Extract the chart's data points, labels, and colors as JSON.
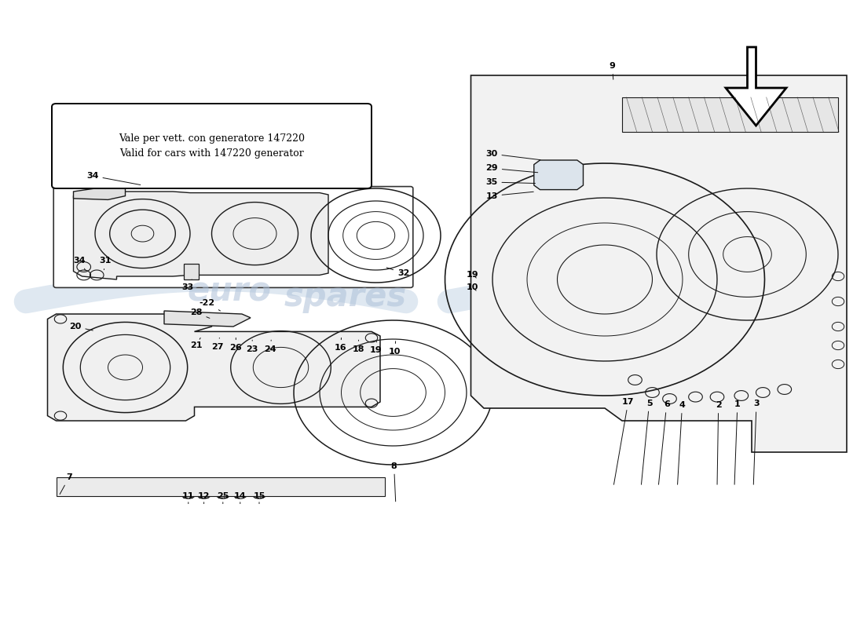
{
  "bg_color": "#ffffff",
  "note_text": "Vale per vett. con generatore 147220\nValid for cars with 147220 generator",
  "watermark": "eurospares",
  "line_color": "#1a1a1a"
}
